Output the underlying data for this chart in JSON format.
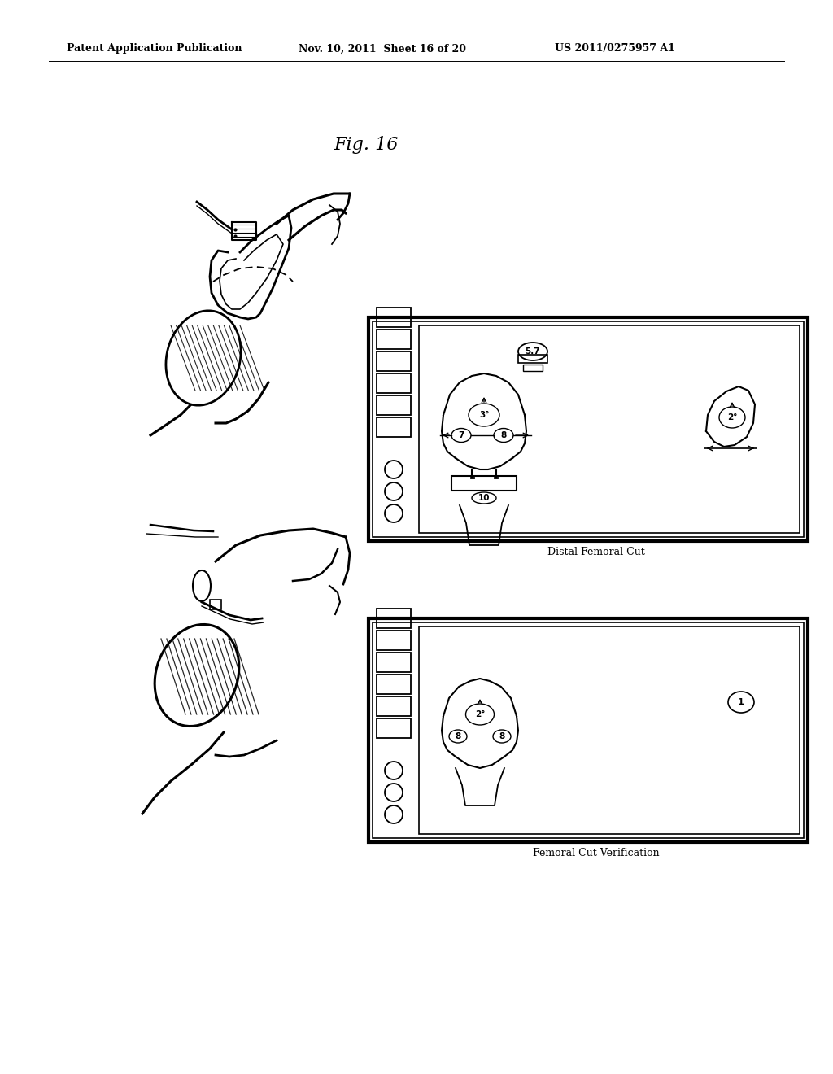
{
  "bg_color": "#ffffff",
  "header_left": "Patent Application Publication",
  "header_mid": "Nov. 10, 2011  Sheet 16 of 20",
  "header_right": "US 2011/0275957 A1",
  "fig_label": "Fig. 16",
  "screen1_label": "Distal Femoral Cut",
  "screen2_label": "Femoral Cut Verification"
}
